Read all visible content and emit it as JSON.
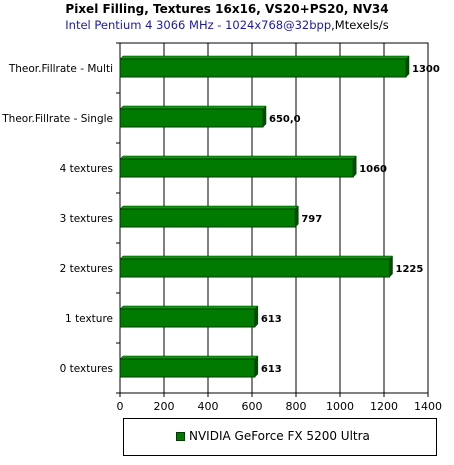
{
  "chart_data": {
    "type": "bar",
    "orientation": "horizontal",
    "title": "Pixel Filling, Textures 16x16, VS20+PS20, NV34",
    "subtitle_cpu": "Intel Pentium 4 3066 MHz - 1024x768@32bpp",
    "subtitle_unit": ",Mtexels/s",
    "categories": [
      "Theor.Fillrate - Multi",
      "Theor.Fillrate - Single",
      "4 textures",
      "3 textures",
      "2 textures",
      "1 texture",
      "0 textures"
    ],
    "series": [
      {
        "name": "NVIDIA GeForce FX 5200 Ultra",
        "values": [
          1300,
          650,
          1060,
          797,
          1225,
          613,
          613
        ],
        "labels": [
          "1300",
          "650,0",
          "1060",
          "797",
          "1225",
          "613",
          "613"
        ],
        "color": "#007a00"
      }
    ],
    "xlim": [
      0,
      1400
    ],
    "xticks": [
      "0",
      "200",
      "400",
      "600",
      "800",
      "1000",
      "1200",
      "1400"
    ],
    "grid": true,
    "legend_position": "bottom"
  }
}
